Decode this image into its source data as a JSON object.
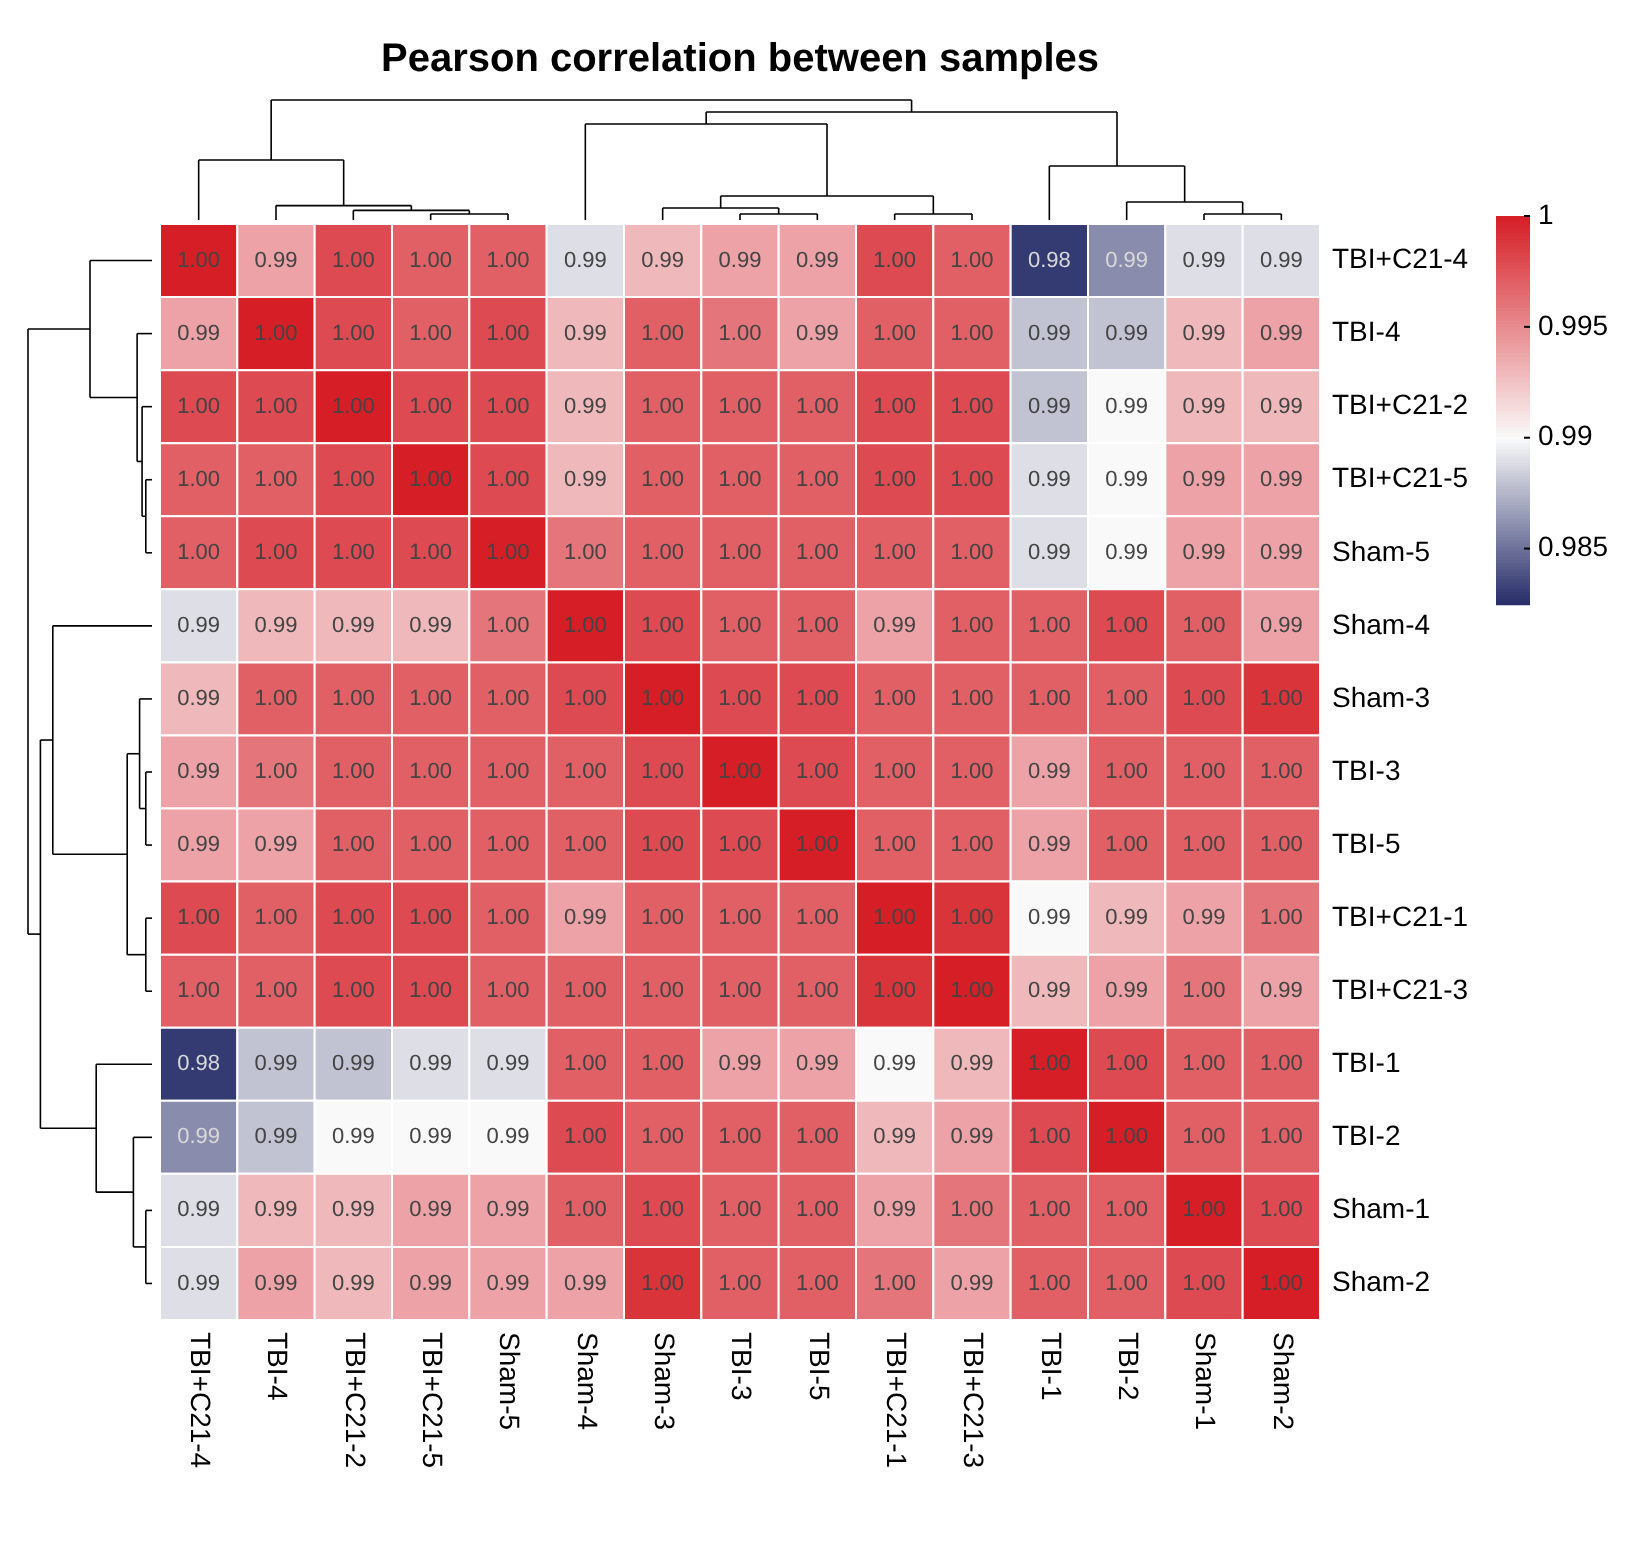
{
  "chart_data": {
    "type": "heatmap",
    "title": "Pearson correlation between samples",
    "categories": [
      "TBI+C21-4",
      "TBI-4",
      "TBI+C21-2",
      "TBI+C21-5",
      "Sham-5",
      "Sham-4",
      "Sham-3",
      "TBI-3",
      "TBI-5",
      "TBI+C21-1",
      "TBI+C21-3",
      "TBI-1",
      "TBI-2",
      "Sham-1",
      "Sham-2"
    ],
    "y_categories": [
      "TBI+C21-4",
      "TBI-4",
      "TBI+C21-2",
      "TBI+C21-5",
      "Sham-5",
      "Sham-4",
      "Sham-3",
      "TBI-3",
      "TBI-5",
      "TBI+C21-1",
      "TBI+C21-3",
      "TBI-1",
      "TBI-2",
      "Sham-1",
      "Sham-2"
    ],
    "cells": [
      [
        1.0,
        0.994,
        0.998,
        0.997,
        0.997,
        0.989,
        0.993,
        0.994,
        0.994,
        0.998,
        0.997,
        0.983,
        0.986,
        0.989,
        0.989
      ],
      [
        0.994,
        1.0,
        0.998,
        0.997,
        0.998,
        0.993,
        0.997,
        0.996,
        0.994,
        0.997,
        0.997,
        0.988,
        0.988,
        0.993,
        0.994
      ],
      [
        0.998,
        0.998,
        1.0,
        0.998,
        0.998,
        0.993,
        0.997,
        0.997,
        0.997,
        0.998,
        0.998,
        0.988,
        0.99,
        0.993,
        0.993
      ],
      [
        0.997,
        0.997,
        0.998,
        1.0,
        0.998,
        0.993,
        0.997,
        0.997,
        0.997,
        0.998,
        0.998,
        0.989,
        0.99,
        0.994,
        0.994
      ],
      [
        0.997,
        0.998,
        0.998,
        0.998,
        1.0,
        0.996,
        0.997,
        0.997,
        0.997,
        0.997,
        0.997,
        0.989,
        0.99,
        0.994,
        0.994
      ],
      [
        0.989,
        0.993,
        0.993,
        0.993,
        0.996,
        1.0,
        0.998,
        0.997,
        0.997,
        0.994,
        0.997,
        0.997,
        0.998,
        0.997,
        0.994
      ],
      [
        0.993,
        0.997,
        0.997,
        0.997,
        0.997,
        0.998,
        1.0,
        0.998,
        0.998,
        0.997,
        0.997,
        0.997,
        0.997,
        0.998,
        0.999
      ],
      [
        0.994,
        0.996,
        0.997,
        0.997,
        0.997,
        0.997,
        0.998,
        1.0,
        0.998,
        0.997,
        0.997,
        0.994,
        0.997,
        0.997,
        0.997
      ],
      [
        0.994,
        0.994,
        0.997,
        0.997,
        0.997,
        0.997,
        0.998,
        0.998,
        1.0,
        0.997,
        0.997,
        0.994,
        0.997,
        0.997,
        0.997
      ],
      [
        0.998,
        0.997,
        0.998,
        0.998,
        0.997,
        0.994,
        0.997,
        0.997,
        0.997,
        1.0,
        0.999,
        0.99,
        0.993,
        0.994,
        0.996
      ],
      [
        0.997,
        0.997,
        0.998,
        0.998,
        0.997,
        0.997,
        0.997,
        0.997,
        0.997,
        0.999,
        1.0,
        0.993,
        0.994,
        0.996,
        0.994
      ],
      [
        0.983,
        0.988,
        0.988,
        0.989,
        0.989,
        0.997,
        0.997,
        0.994,
        0.994,
        0.99,
        0.993,
        1.0,
        0.998,
        0.997,
        0.997
      ],
      [
        0.986,
        0.988,
        0.99,
        0.99,
        0.99,
        0.998,
        0.997,
        0.997,
        0.997,
        0.993,
        0.994,
        0.998,
        1.0,
        0.997,
        0.997
      ],
      [
        0.989,
        0.993,
        0.993,
        0.994,
        0.994,
        0.997,
        0.998,
        0.997,
        0.997,
        0.994,
        0.996,
        0.997,
        0.997,
        1.0,
        0.998
      ],
      [
        0.989,
        0.994,
        0.993,
        0.994,
        0.994,
        0.994,
        0.999,
        0.997,
        0.997,
        0.996,
        0.994,
        0.997,
        0.997,
        0.998,
        1.0
      ]
    ],
    "cell_labels": [
      [
        "1.00",
        "0.99",
        "1.00",
        "1.00",
        "1.00",
        "0.99",
        "0.99",
        "0.99",
        "0.99",
        "1.00",
        "1.00",
        "0.98",
        "0.99",
        "0.99",
        "0.99"
      ],
      [
        "0.99",
        "1.00",
        "1.00",
        "1.00",
        "1.00",
        "0.99",
        "1.00",
        "1.00",
        "0.99",
        "1.00",
        "1.00",
        "0.99",
        "0.99",
        "0.99",
        "0.99"
      ],
      [
        "1.00",
        "1.00",
        "1.00",
        "1.00",
        "1.00",
        "0.99",
        "1.00",
        "1.00",
        "1.00",
        "1.00",
        "1.00",
        "0.99",
        "0.99",
        "0.99",
        "0.99"
      ],
      [
        "1.00",
        "1.00",
        "1.00",
        "1.00",
        "1.00",
        "0.99",
        "1.00",
        "1.00",
        "1.00",
        "1.00",
        "1.00",
        "0.99",
        "0.99",
        "0.99",
        "0.99"
      ],
      [
        "1.00",
        "1.00",
        "1.00",
        "1.00",
        "1.00",
        "1.00",
        "1.00",
        "1.00",
        "1.00",
        "1.00",
        "1.00",
        "0.99",
        "0.99",
        "0.99",
        "0.99"
      ],
      [
        "0.99",
        "0.99",
        "0.99",
        "0.99",
        "1.00",
        "1.00",
        "1.00",
        "1.00",
        "1.00",
        "0.99",
        "1.00",
        "1.00",
        "1.00",
        "1.00",
        "0.99"
      ],
      [
        "0.99",
        "1.00",
        "1.00",
        "1.00",
        "1.00",
        "1.00",
        "1.00",
        "1.00",
        "1.00",
        "1.00",
        "1.00",
        "1.00",
        "1.00",
        "1.00",
        "1.00"
      ],
      [
        "0.99",
        "1.00",
        "1.00",
        "1.00",
        "1.00",
        "1.00",
        "1.00",
        "1.00",
        "1.00",
        "1.00",
        "1.00",
        "0.99",
        "1.00",
        "1.00",
        "1.00"
      ],
      [
        "0.99",
        "0.99",
        "1.00",
        "1.00",
        "1.00",
        "1.00",
        "1.00",
        "1.00",
        "1.00",
        "1.00",
        "1.00",
        "0.99",
        "1.00",
        "1.00",
        "1.00"
      ],
      [
        "1.00",
        "1.00",
        "1.00",
        "1.00",
        "1.00",
        "0.99",
        "1.00",
        "1.00",
        "1.00",
        "1.00",
        "1.00",
        "0.99",
        "0.99",
        "0.99",
        "1.00"
      ],
      [
        "1.00",
        "1.00",
        "1.00",
        "1.00",
        "1.00",
        "1.00",
        "1.00",
        "1.00",
        "1.00",
        "1.00",
        "1.00",
        "0.99",
        "0.99",
        "1.00",
        "0.99"
      ],
      [
        "0.98",
        "0.99",
        "0.99",
        "0.99",
        "0.99",
        "1.00",
        "1.00",
        "0.99",
        "0.99",
        "0.99",
        "0.99",
        "1.00",
        "1.00",
        "1.00",
        "1.00"
      ],
      [
        "0.99",
        "0.99",
        "0.99",
        "0.99",
        "0.99",
        "1.00",
        "1.00",
        "1.00",
        "1.00",
        "0.99",
        "0.99",
        "1.00",
        "1.00",
        "1.00",
        "1.00"
      ],
      [
        "0.99",
        "0.99",
        "0.99",
        "0.99",
        "0.99",
        "1.00",
        "1.00",
        "1.00",
        "1.00",
        "0.99",
        "1.00",
        "1.00",
        "1.00",
        "1.00",
        "1.00"
      ],
      [
        "0.99",
        "0.99",
        "0.99",
        "0.99",
        "0.99",
        "0.99",
        "1.00",
        "1.00",
        "1.00",
        "1.00",
        "0.99",
        "1.00",
        "1.00",
        "1.00",
        "1.00"
      ]
    ],
    "clim": [
      0.9825,
      1
    ],
    "cticks": [
      0.985,
      0.99,
      0.995,
      1
    ]
  }
}
